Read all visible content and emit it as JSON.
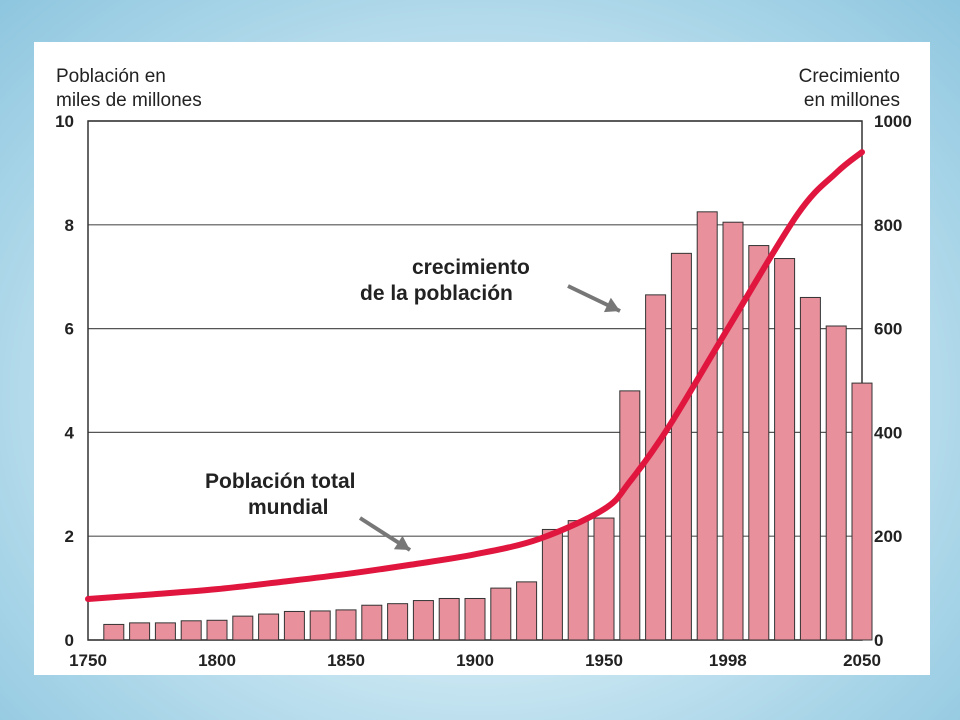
{
  "chart_data": {
    "type": "bar",
    "left_axis_label_line1": "Población en",
    "left_axis_label_line2": "miles de millones",
    "right_axis_label_line1": "Crecimiento",
    "right_axis_label_line2": "en millones",
    "left_ylim": [
      0,
      10
    ],
    "left_ticks": [
      "0",
      "2",
      "4",
      "6",
      "8",
      "10"
    ],
    "right_ylim": [
      0,
      1000
    ],
    "right_ticks": [
      "0",
      "200",
      "400",
      "600",
      "800",
      "1000"
    ],
    "xlim": [
      1750,
      2050
    ],
    "x_ticks": [
      "1750",
      "1800",
      "1850",
      "1900",
      "1950",
      "1998",
      "2050"
    ],
    "x_tick_values": [
      1750,
      1800,
      1850,
      1900,
      1950,
      1998,
      2050
    ],
    "grid": true,
    "bars": {
      "name": "crecimiento de la población",
      "x": [
        1760,
        1770,
        1780,
        1790,
        1800,
        1810,
        1820,
        1830,
        1840,
        1850,
        1860,
        1870,
        1880,
        1890,
        1900,
        1910,
        1920,
        1930,
        1940,
        1950,
        1960,
        1970,
        1980,
        1990,
        2000,
        2010,
        2020,
        2030,
        2040,
        2050
      ],
      "values": [
        30,
        33,
        33,
        37,
        38,
        46,
        50,
        55,
        56,
        58,
        67,
        70,
        76,
        80,
        80,
        100,
        112,
        213,
        230,
        235,
        480,
        665,
        745,
        825,
        805,
        760,
        735,
        660,
        605,
        495
      ],
      "color": "#e8909c"
    },
    "line": {
      "name": "Población total mundial",
      "x": [
        1750,
        1775,
        1800,
        1825,
        1850,
        1875,
        1900,
        1925,
        1950,
        1960,
        1975,
        1998,
        2025,
        2040,
        2050
      ],
      "values": [
        0.79,
        0.88,
        0.98,
        1.12,
        1.27,
        1.45,
        1.65,
        1.95,
        2.52,
        3.05,
        4.1,
        6.0,
        8.2,
        9.0,
        9.4
      ],
      "color": "#e0163f"
    },
    "annotations": [
      {
        "line1": "crecimiento",
        "line2": "de la población"
      },
      {
        "line1": "Población total",
        "line2": "mundial"
      }
    ]
  }
}
